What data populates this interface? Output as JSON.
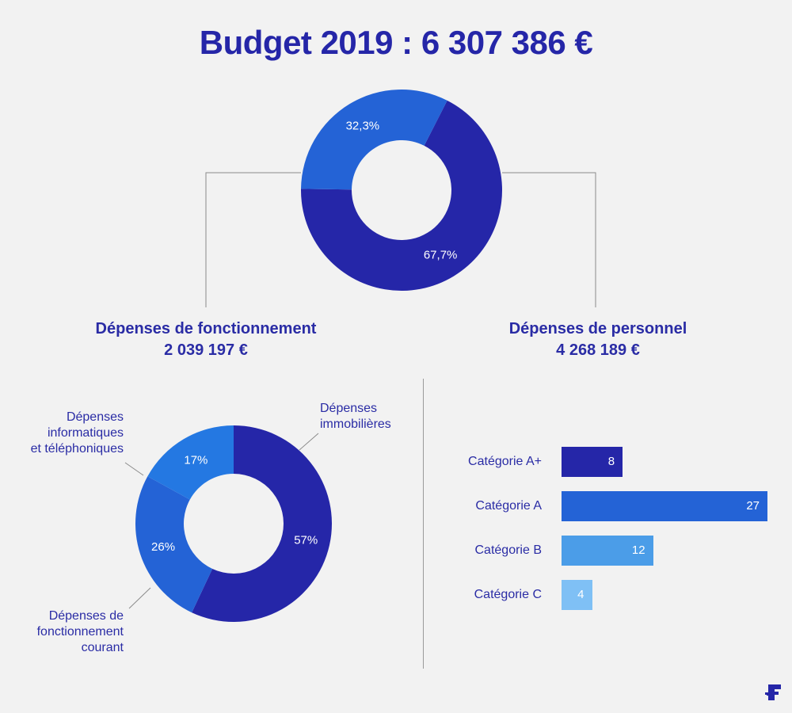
{
  "header": {
    "title": "Budget 2019 : 6 307 386 €"
  },
  "chart_data": [
    {
      "type": "pie",
      "variant": "donut",
      "slices": [
        {
          "name": "Dépenses de personnel",
          "amount": "4 268 189 €",
          "value": 67.7,
          "label": "67,7%",
          "color": "#2526a8"
        },
        {
          "name": "Dépenses de fonctionnement",
          "amount": "2 039 197 €",
          "value": 32.3,
          "label": "32,3%",
          "color": "#2463d6"
        }
      ]
    },
    {
      "type": "pie",
      "variant": "donut",
      "slices": [
        {
          "name": "Dépenses immobilières",
          "name_lines": [
            "Dépenses",
            "immobilières"
          ],
          "value": 57,
          "label": "57%",
          "color": "#2526a8"
        },
        {
          "name": "Dépenses de fonctionnement courant",
          "name_lines": [
            "Dépenses de",
            "fonctionnement",
            "courant"
          ],
          "value": 26,
          "label": "26%",
          "color": "#2463d6"
        },
        {
          "name": "Dépenses informatiques et téléphoniques",
          "name_lines": [
            "Dépenses",
            "informatiques",
            "et téléphoniques"
          ],
          "value": 17,
          "label": "17%",
          "color": "#2478e2"
        }
      ]
    },
    {
      "type": "bar",
      "orientation": "horizontal",
      "categories": [
        "Catégorie A+",
        "Catégorie A",
        "Catégorie B",
        "Catégorie C"
      ],
      "values": [
        8,
        27,
        12,
        4
      ],
      "labels": [
        "8",
        "27",
        "12",
        "4"
      ],
      "colors": [
        "#2526a8",
        "#2463d6",
        "#4b9de8",
        "#7fc0f5"
      ]
    }
  ]
}
